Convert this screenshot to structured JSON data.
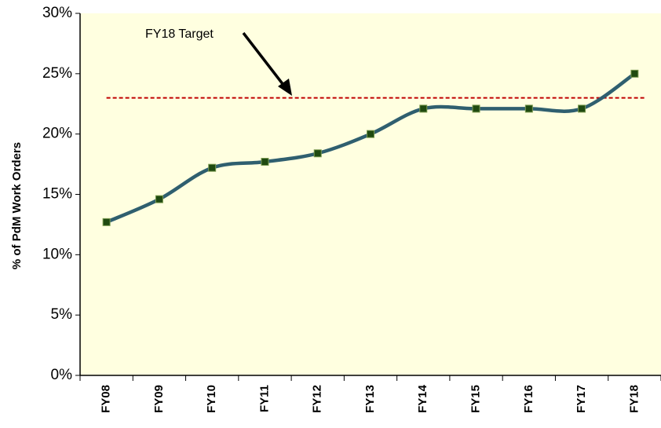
{
  "chart_data": {
    "type": "line",
    "ylabel": "% of PdM Work Orders",
    "categories": [
      "FY08",
      "FY09",
      "FY10",
      "FY11",
      "FY12",
      "FY13",
      "FY14",
      "FY15",
      "FY16",
      "FY17",
      "FY18"
    ],
    "series": [
      {
        "name": "PdM Work Orders",
        "color": "#2f5f6f",
        "marker_color": "#1f4a10",
        "values": [
          12.7,
          14.6,
          17.2,
          17.7,
          18.4,
          20.0,
          22.1,
          22.1,
          22.1,
          22.1,
          25.0
        ]
      }
    ],
    "target": 23,
    "target_color": "#c00000",
    "annotation": "FY18 Target",
    "ylim": [
      0,
      30
    ],
    "yticks": [
      {
        "value": 0,
        "label": "0%"
      },
      {
        "value": 5,
        "label": "5%"
      },
      {
        "value": 10,
        "label": "10%"
      },
      {
        "value": 15,
        "label": "15%"
      },
      {
        "value": 20,
        "label": "20%"
      },
      {
        "value": 25,
        "label": "25%"
      },
      {
        "value": 30,
        "label": "30%"
      }
    ],
    "background": "#ffffe0",
    "smooth": true
  }
}
